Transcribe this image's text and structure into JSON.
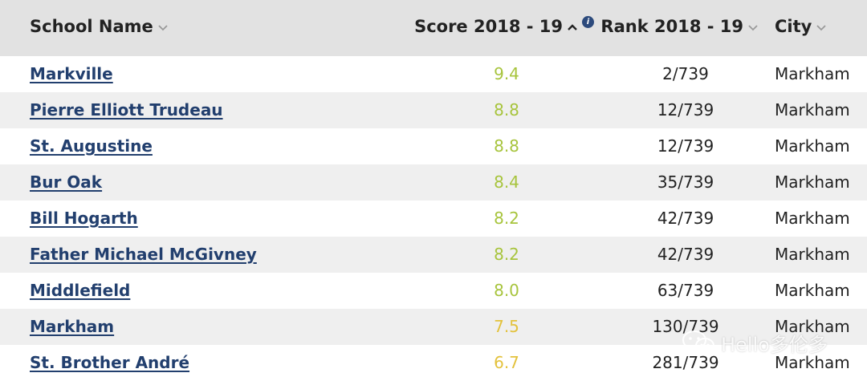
{
  "header": {
    "school_name": "School Name",
    "score": "Score 2018 - 19",
    "rank": "Rank 2018 - 19",
    "city": "City",
    "info_glyph": "i",
    "sort_icon": "chevron-up-icon",
    "menu_icon": "chevron-down-icon"
  },
  "rows": [
    {
      "name": "Markville",
      "score": "9.4",
      "rank": "2/739",
      "city": "Markham",
      "score_color": "#a7c43c"
    },
    {
      "name": "Pierre Elliott Trudeau",
      "score": "8.8",
      "rank": "12/739",
      "city": "Markham",
      "score_color": "#a7c43c"
    },
    {
      "name": "St. Augustine",
      "score": "8.8",
      "rank": "12/739",
      "city": "Markham",
      "score_color": "#a7c43c"
    },
    {
      "name": "Bur Oak",
      "score": "8.4",
      "rank": "35/739",
      "city": "Markham",
      "score_color": "#a7c43c"
    },
    {
      "name": "Bill Hogarth",
      "score": "8.2",
      "rank": "42/739",
      "city": "Markham",
      "score_color": "#a7c43c"
    },
    {
      "name": "Father Michael McGivney",
      "score": "8.2",
      "rank": "42/739",
      "city": "Markham",
      "score_color": "#a7c43c"
    },
    {
      "name": "Middlefield",
      "score": "8.0",
      "rank": "63/739",
      "city": "Markham",
      "score_color": "#a7c43c"
    },
    {
      "name": "Markham",
      "score": "7.5",
      "rank": "130/739",
      "city": "Markham",
      "score_color": "#e3c23c"
    },
    {
      "name": "St. Brother André",
      "score": "6.7",
      "rank": "281/739",
      "city": "Markham",
      "score_color": "#e3c23c"
    }
  ],
  "watermark": {
    "text": "Hello多伦多",
    "icon": "wechat-icon"
  },
  "colors": {
    "header_bg": "#e2e2e2",
    "link": "#223f6e",
    "row_alt": "#efefef"
  }
}
